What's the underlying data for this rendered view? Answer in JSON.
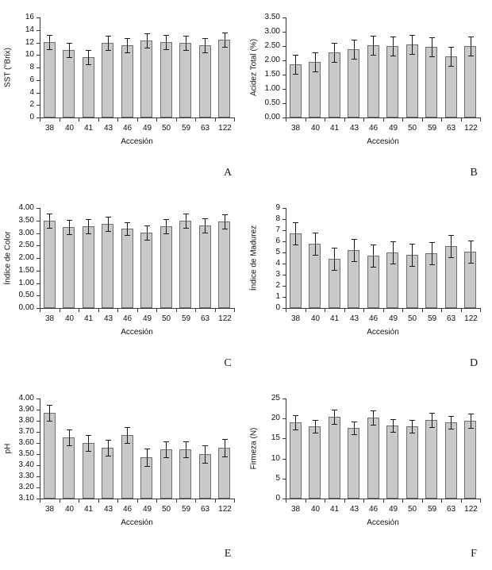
{
  "figure": {
    "background": "#ffffff",
    "bar_fill": "#c9c9c9",
    "bar_border": "#6f6f6f",
    "axis_color": "#3a3a3a",
    "error_color": "#1a1a1a",
    "text_color": "#111111"
  },
  "chart_data": [
    {
      "panel_letter": "A",
      "type": "bar",
      "title": "",
      "xlabel": "Accesión",
      "ylabel": "SST (°Brix)",
      "categories": [
        "38",
        "40",
        "41",
        "43",
        "46",
        "49",
        "50",
        "59",
        "63",
        "122"
      ],
      "values": [
        12.0,
        10.8,
        9.6,
        11.9,
        11.6,
        12.3,
        12.0,
        11.9,
        11.6,
        12.5
      ],
      "errors": [
        1.2,
        1.2,
        1.2,
        1.2,
        1.1,
        1.2,
        1.2,
        1.2,
        1.1,
        1.2
      ],
      "ylim": [
        0,
        16
      ],
      "yticks": [
        0,
        2,
        4,
        6,
        8,
        10,
        12,
        14,
        16
      ],
      "ytick_labels": [
        "0",
        "2",
        "4",
        "6",
        "8",
        "10",
        "12",
        "14",
        "16"
      ],
      "grid": false,
      "legend": false
    },
    {
      "panel_letter": "B",
      "type": "bar",
      "title": "",
      "xlabel": "Accesión",
      "ylabel": "Acidez Total (%)",
      "categories": [
        "38",
        "40",
        "41",
        "43",
        "46",
        "49",
        "50",
        "59",
        "63",
        "122"
      ],
      "values": [
        1.87,
        1.95,
        2.27,
        2.38,
        2.52,
        2.51,
        2.56,
        2.48,
        2.13,
        2.5
      ],
      "errors": [
        0.34,
        0.34,
        0.34,
        0.34,
        0.33,
        0.33,
        0.33,
        0.34,
        0.34,
        0.34
      ],
      "ylim": [
        0,
        3.5
      ],
      "yticks": [
        0,
        0.5,
        1.0,
        1.5,
        2.0,
        2.5,
        3.0,
        3.5
      ],
      "ytick_labels": [
        "0.00",
        "0.50",
        "1.00",
        "1.50",
        "2.00",
        "2.50",
        "3.00",
        "3.50"
      ],
      "grid": false,
      "legend": false
    },
    {
      "panel_letter": "C",
      "type": "bar",
      "title": "",
      "xlabel": "Accesión",
      "ylabel": "Índice de Color",
      "categories": [
        "38",
        "40",
        "41",
        "43",
        "46",
        "49",
        "50",
        "59",
        "63",
        "122"
      ],
      "values": [
        3.49,
        3.25,
        3.27,
        3.35,
        3.19,
        3.0,
        3.26,
        3.49,
        3.31,
        3.47
      ],
      "errors": [
        0.27,
        0.27,
        0.27,
        0.27,
        0.26,
        0.27,
        0.27,
        0.27,
        0.27,
        0.27
      ],
      "ylim": [
        0,
        4.0
      ],
      "yticks": [
        0,
        0.5,
        1.0,
        1.5,
        2.0,
        2.5,
        3.0,
        3.5,
        4.0
      ],
      "ytick_labels": [
        "0.00",
        "0.50",
        "1.00",
        "1.50",
        "2.00",
        "2.50",
        "3.00",
        "3.50",
        "4.00"
      ],
      "grid": false,
      "legend": false
    },
    {
      "panel_letter": "D",
      "type": "bar",
      "title": "",
      "xlabel": "Accesión",
      "ylabel": "Índice de Madurez",
      "categories": [
        "38",
        "40",
        "41",
        "43",
        "46",
        "49",
        "50",
        "59",
        "63",
        "122"
      ],
      "values": [
        6.7,
        5.8,
        4.4,
        5.2,
        4.7,
        5.0,
        4.8,
        4.9,
        5.6,
        5.1
      ],
      "errors": [
        1.0,
        1.0,
        1.0,
        1.0,
        1.0,
        1.0,
        1.0,
        1.0,
        1.0,
        1.0
      ],
      "ylim": [
        0,
        9
      ],
      "yticks": [
        0,
        1,
        2,
        3,
        4,
        5,
        6,
        7,
        8,
        9
      ],
      "ytick_labels": [
        "0",
        "1",
        "2",
        "3",
        "4",
        "5",
        "6",
        "7",
        "8",
        "9"
      ],
      "grid": false,
      "legend": false
    },
    {
      "panel_letter": "E",
      "type": "bar",
      "title": "",
      "xlabel": "Accesión",
      "ylabel": "pH",
      "categories": [
        "38",
        "40",
        "41",
        "43",
        "46",
        "49",
        "50",
        "59",
        "63",
        "122"
      ],
      "values": [
        3.87,
        3.65,
        3.6,
        3.56,
        3.67,
        3.47,
        3.54,
        3.54,
        3.5,
        3.56
      ],
      "errors": [
        0.07,
        0.07,
        0.07,
        0.07,
        0.07,
        0.08,
        0.07,
        0.07,
        0.08,
        0.08
      ],
      "ylim": [
        3.1,
        4.0
      ],
      "yticks": [
        3.1,
        3.2,
        3.3,
        3.4,
        3.5,
        3.6,
        3.7,
        3.8,
        3.9,
        4.0
      ],
      "ytick_labels": [
        "3.10",
        "3.20",
        "3.30",
        "3.40",
        "3.50",
        "3.60",
        "3.70",
        "3.80",
        "3.90",
        "4.00"
      ],
      "grid": false,
      "legend": false
    },
    {
      "panel_letter": "F",
      "type": "bar",
      "title": "",
      "xlabel": "Accesión",
      "ylabel": "Firmeza (N)",
      "categories": [
        "38",
        "40",
        "41",
        "43",
        "46",
        "49",
        "50",
        "59",
        "63",
        "122"
      ],
      "values": [
        19.0,
        18.1,
        20.5,
        17.7,
        20.2,
        18.2,
        18.1,
        19.6,
        19.1,
        19.4
      ],
      "errors": [
        1.7,
        1.6,
        1.8,
        1.5,
        1.8,
        1.5,
        1.5,
        1.7,
        1.5,
        1.7
      ],
      "ylim": [
        0,
        25
      ],
      "yticks": [
        0,
        5,
        10,
        15,
        20,
        25
      ],
      "ytick_labels": [
        "0",
        "5",
        "10",
        "15",
        "20",
        "25"
      ],
      "grid": false,
      "legend": false
    }
  ]
}
